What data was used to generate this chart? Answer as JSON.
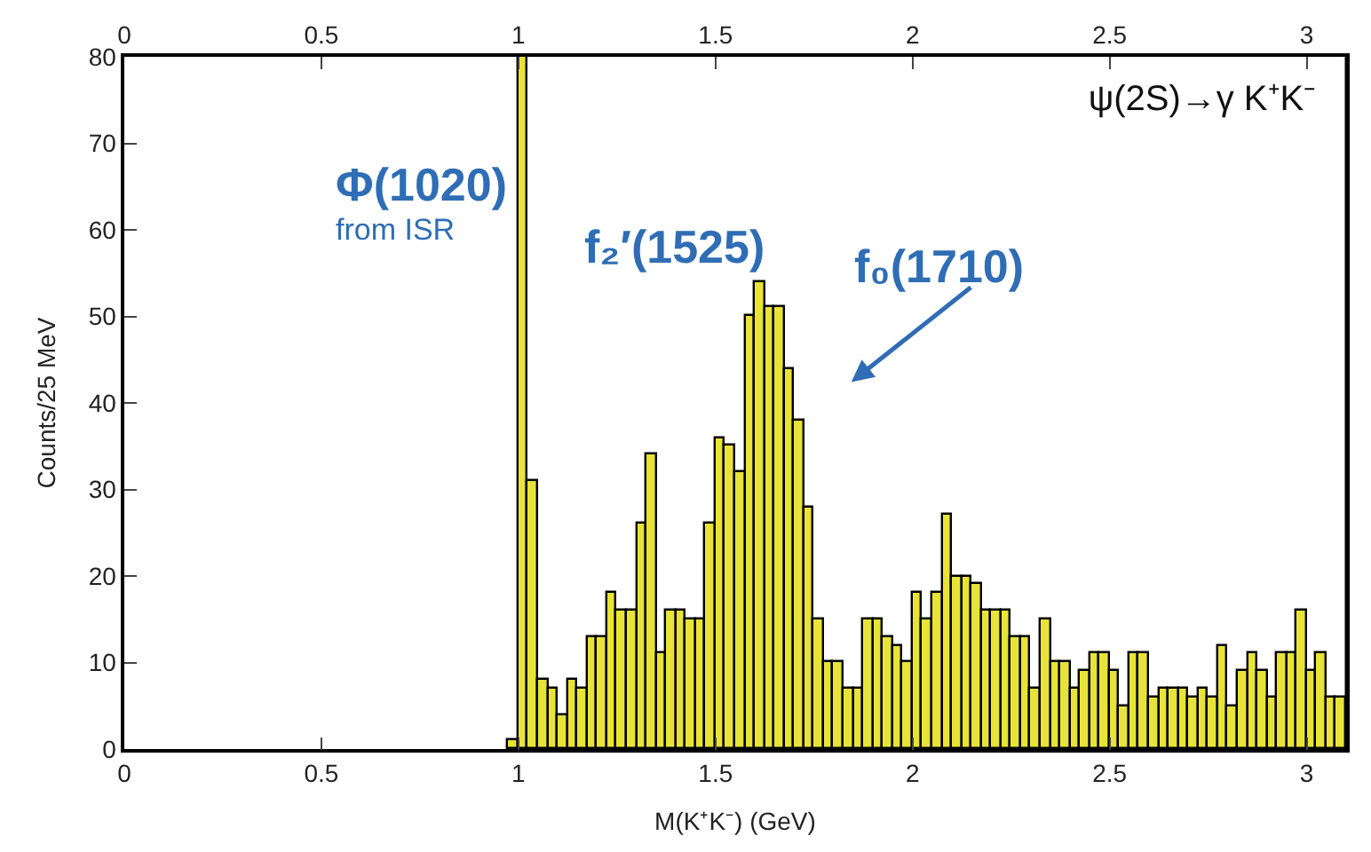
{
  "chart_data": {
    "type": "histogram",
    "title": "ψ(2S)→γ K⁺K⁻",
    "xlabel": "M(K⁺K⁻) (GeV)",
    "ylabel": "Counts/25 MeV",
    "annotations": [
      "Φ(1020)",
      "from ISR",
      "f₂′(1525)",
      "f₀(1710)"
    ],
    "bins": [
      0.975,
      1.0,
      1.025,
      1.05,
      1.075,
      1.1,
      1.125,
      1.15,
      1.175,
      1.2,
      1.225,
      1.25,
      1.275,
      1.3,
      1.325,
      1.35,
      1.375,
      1.4,
      1.425,
      1.45,
      1.475,
      1.5,
      1.525,
      1.55,
      1.575,
      1.6,
      1.625,
      1.65,
      1.675,
      1.7,
      1.725,
      1.75,
      1.775,
      1.8,
      1.825,
      1.85,
      1.875,
      1.9,
      1.925,
      1.95,
      1.975,
      2.0,
      2.025,
      2.05,
      2.075,
      2.1,
      2.125,
      2.15,
      2.175,
      2.2,
      2.225,
      2.25,
      2.275,
      2.3,
      2.325,
      2.35,
      2.375,
      2.4,
      2.425,
      2.45,
      2.475,
      2.5,
      2.525,
      2.55,
      2.575,
      2.6,
      2.625,
      2.65,
      2.675,
      2.7,
      2.725,
      2.75,
      2.775,
      2.8,
      2.825,
      2.85,
      2.875,
      2.9,
      2.925,
      2.95,
      2.975,
      3.0,
      3.025,
      3.05,
      3.075,
      3.1
    ],
    "values": [
      1,
      80,
      31,
      8,
      7,
      4,
      8,
      7,
      13,
      13,
      18,
      16,
      16,
      26,
      34,
      11,
      16,
      16,
      15,
      15,
      26,
      36,
      35,
      32,
      50,
      54,
      51,
      51,
      44,
      38,
      28,
      15,
      10,
      10,
      7,
      7,
      15,
      15,
      13,
      12,
      10,
      18,
      15,
      18,
      27,
      20,
      20,
      19,
      16,
      16,
      16,
      13,
      13,
      7,
      15,
      10,
      10,
      7,
      9,
      11,
      11,
      9,
      5,
      11,
      11,
      6,
      7,
      7,
      7,
      6,
      7,
      6,
      12,
      5,
      9,
      11,
      9,
      6,
      11,
      11,
      16,
      9,
      11,
      6,
      6
    ],
    "color": "#e8e337",
    "xlim": [
      0,
      3.1
    ],
    "xticks": [
      0,
      0.5,
      1,
      1.5,
      2,
      2.5,
      3
    ],
    "x2lim": [
      0,
      3.1
    ],
    "x2ticks": [
      0,
      0.5,
      1,
      1.5,
      2,
      2.5,
      3
    ],
    "ylim": [
      0,
      80
    ],
    "yticks": [
      0,
      10,
      20,
      30,
      40,
      50,
      60,
      70,
      80
    ]
  }
}
